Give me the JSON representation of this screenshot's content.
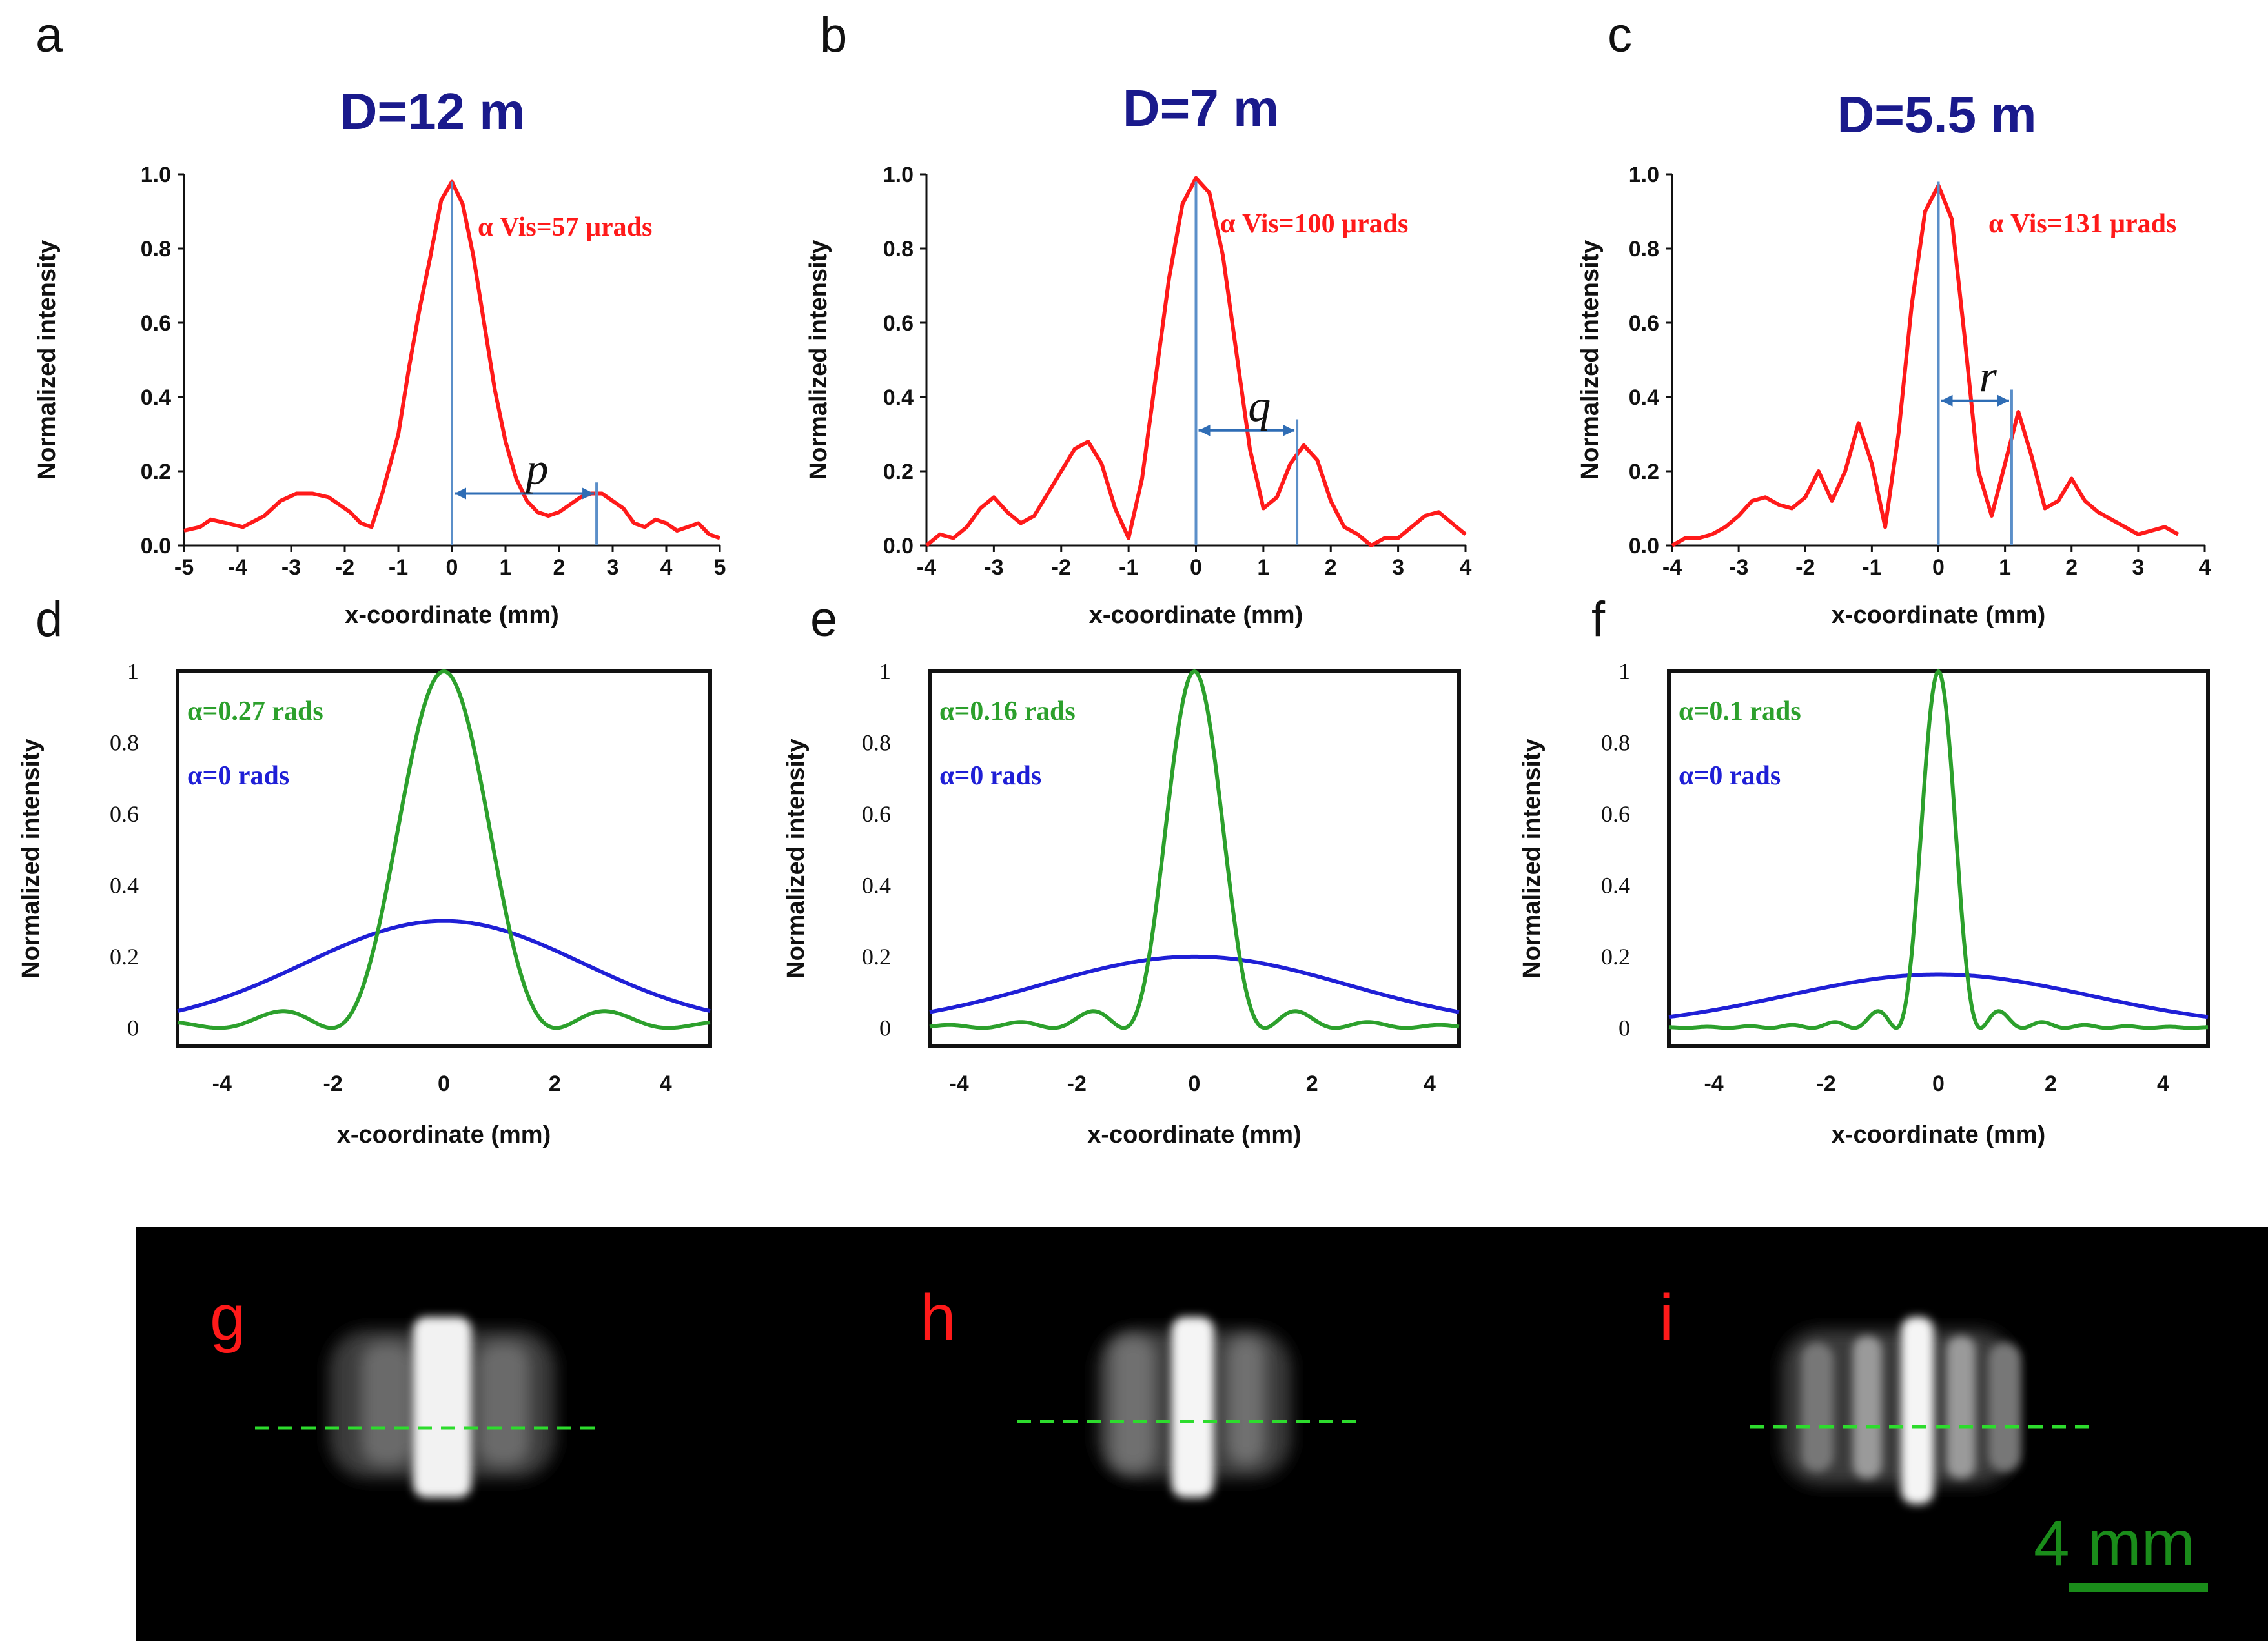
{
  "colors": {
    "measured": "#ff1a1a",
    "marker": "#5b8fc9",
    "sim_green": "#2ca02c",
    "sim_blue": "#1f1fd6",
    "title": "#1a1a8c",
    "scale": "#1a8c1a"
  },
  "chart_data": [
    {
      "panel": "a",
      "type": "line",
      "title": "D=12 m",
      "xlabel": "x-coordinate (mm)",
      "ylabel": "Normalized intensity",
      "xlim": [
        -5,
        5
      ],
      "ylim": [
        0,
        1
      ],
      "xticks": [
        "-5",
        "-4",
        "-3",
        "-2",
        "-1",
        "0",
        "1",
        "2",
        "3",
        "4",
        "5"
      ],
      "yticks": [
        "0.0",
        "0.2",
        "0.4",
        "0.6",
        "0.8",
        "1.0"
      ],
      "annotation": "α Vis=57 μrads",
      "marker_symbol": "p",
      "marker_x": [
        0,
        2.7
      ],
      "marker_y": 0.14,
      "series": [
        {
          "x": [
            -5,
            -4.7,
            -4.5,
            -4.2,
            -3.9,
            -3.5,
            -3.2,
            -2.9,
            -2.6,
            -2.3,
            -2.1,
            -1.9,
            -1.7,
            -1.5,
            -1.3,
            -1.0,
            -0.8,
            -0.6,
            -0.4,
            -0.2,
            0,
            0.2,
            0.4,
            0.6,
            0.8,
            1.0,
            1.2,
            1.4,
            1.6,
            1.8,
            2.0,
            2.2,
            2.4,
            2.6,
            2.8,
            3.0,
            3.2,
            3.4,
            3.6,
            3.8,
            4.0,
            4.2,
            4.4,
            4.6,
            4.8,
            5
          ],
          "y": [
            0.04,
            0.05,
            0.07,
            0.06,
            0.05,
            0.08,
            0.12,
            0.14,
            0.14,
            0.13,
            0.11,
            0.09,
            0.06,
            0.05,
            0.14,
            0.3,
            0.48,
            0.64,
            0.78,
            0.93,
            0.98,
            0.92,
            0.78,
            0.6,
            0.42,
            0.28,
            0.18,
            0.12,
            0.09,
            0.08,
            0.09,
            0.11,
            0.13,
            0.14,
            0.14,
            0.12,
            0.1,
            0.06,
            0.05,
            0.07,
            0.06,
            0.04,
            0.05,
            0.06,
            0.03,
            0.02
          ]
        }
      ]
    },
    {
      "panel": "b",
      "type": "line",
      "title": "D=7 m",
      "xlabel": "x-coordinate (mm)",
      "ylabel": "Normalized intensity",
      "xlim": [
        -4,
        4
      ],
      "ylim": [
        0,
        1
      ],
      "xticks": [
        "-4",
        "-3",
        "-2",
        "-1",
        "0",
        "1",
        "2",
        "3",
        "4"
      ],
      "yticks": [
        "0.0",
        "0.2",
        "0.4",
        "0.6",
        "0.8",
        "1.0"
      ],
      "annotation": "α Vis=100 μrads",
      "marker_symbol": "q",
      "marker_x": [
        0,
        1.5
      ],
      "marker_y": 0.31,
      "series": [
        {
          "x": [
            -4,
            -3.8,
            -3.6,
            -3.4,
            -3.2,
            -3.0,
            -2.8,
            -2.6,
            -2.4,
            -2.2,
            -2.0,
            -1.8,
            -1.6,
            -1.4,
            -1.2,
            -1.0,
            -0.8,
            -0.6,
            -0.4,
            -0.2,
            0,
            0.2,
            0.4,
            0.6,
            0.8,
            1.0,
            1.2,
            1.4,
            1.6,
            1.8,
            2.0,
            2.2,
            2.4,
            2.6,
            2.8,
            3.0,
            3.2,
            3.4,
            3.6,
            3.8,
            4.0
          ],
          "y": [
            0.0,
            0.03,
            0.02,
            0.05,
            0.1,
            0.13,
            0.09,
            0.06,
            0.08,
            0.14,
            0.2,
            0.26,
            0.28,
            0.22,
            0.1,
            0.02,
            0.18,
            0.45,
            0.72,
            0.92,
            0.99,
            0.95,
            0.78,
            0.52,
            0.26,
            0.1,
            0.13,
            0.22,
            0.27,
            0.23,
            0.12,
            0.05,
            0.03,
            0.0,
            0.02,
            0.02,
            0.05,
            0.08,
            0.09,
            0.06,
            0.03
          ]
        }
      ]
    },
    {
      "panel": "c",
      "type": "line",
      "title": "D=5.5 m",
      "xlabel": "x-coordinate (mm)",
      "ylabel": "Normalized intensity",
      "xlim": [
        -4,
        4
      ],
      "ylim": [
        0,
        1
      ],
      "xticks": [
        "-4",
        "-3",
        "-2",
        "-1",
        "0",
        "1",
        "2",
        "3",
        "4"
      ],
      "yticks": [
        "0.0",
        "0.2",
        "0.4",
        "0.6",
        "0.8",
        "1.0"
      ],
      "annotation": "α Vis=131 μrads",
      "marker_symbol": "r",
      "marker_x": [
        0,
        1.1
      ],
      "marker_y": 0.39,
      "series": [
        {
          "x": [
            -4,
            -3.8,
            -3.6,
            -3.4,
            -3.2,
            -3.0,
            -2.8,
            -2.6,
            -2.4,
            -2.2,
            -2.0,
            -1.8,
            -1.6,
            -1.4,
            -1.2,
            -1.0,
            -0.8,
            -0.6,
            -0.4,
            -0.2,
            0,
            0.2,
            0.4,
            0.6,
            0.8,
            1.0,
            1.2,
            1.4,
            1.6,
            1.8,
            2.0,
            2.2,
            2.4,
            2.6,
            2.8,
            3.0,
            3.2,
            3.4,
            3.6
          ],
          "y": [
            0.0,
            0.02,
            0.02,
            0.03,
            0.05,
            0.08,
            0.12,
            0.13,
            0.11,
            0.1,
            0.13,
            0.2,
            0.12,
            0.2,
            0.33,
            0.22,
            0.05,
            0.3,
            0.65,
            0.9,
            0.97,
            0.88,
            0.55,
            0.2,
            0.08,
            0.22,
            0.36,
            0.24,
            0.1,
            0.12,
            0.18,
            0.12,
            0.09,
            0.07,
            0.05,
            0.03,
            0.04,
            0.05,
            0.03
          ]
        }
      ]
    },
    {
      "panel": "d",
      "type": "line",
      "xlabel": "x-coordinate (mm)",
      "ylabel": "Normalized intensity",
      "xlim": [
        -4.8,
        4.8
      ],
      "ylim": [
        -0.05,
        1
      ],
      "xticks": [
        "-4",
        "-2",
        "0",
        "2",
        "4"
      ],
      "yticks": [
        "0",
        "0.2",
        "0.4",
        "0.6",
        "0.8",
        "1"
      ],
      "series": [
        {
          "name": "α=0.27 rads",
          "alpha": 0.27,
          "peak": 1.0
        },
        {
          "name": "α=0 rads",
          "gauss_peak": 0.3,
          "gauss_sigma": 2.5
        }
      ]
    },
    {
      "panel": "e",
      "type": "line",
      "xlabel": "x-coordinate (mm)",
      "ylabel": "Normalized intensity",
      "xlim": [
        -4.5,
        4.5
      ],
      "ylim": [
        -0.05,
        1
      ],
      "xticks": [
        "-4",
        "-2",
        "0",
        "2",
        "4"
      ],
      "yticks": [
        "0",
        "0.2",
        "0.4",
        "0.6",
        "0.8",
        "1"
      ],
      "series": [
        {
          "name": "α=0.16 rads",
          "alpha": 0.16,
          "peak": 1.0
        },
        {
          "name": "α=0 rads",
          "gauss_peak": 0.2,
          "gauss_sigma": 2.6
        }
      ]
    },
    {
      "panel": "f",
      "type": "line",
      "xlabel": "x-coordinate (mm)",
      "ylabel": "Normalized intensity",
      "xlim": [
        -4.8,
        4.8
      ],
      "ylim": [
        -0.05,
        1
      ],
      "xticks": [
        "-4",
        "-2",
        "0",
        "2",
        "4"
      ],
      "yticks": [
        "0",
        "0.2",
        "0.4",
        "0.6",
        "0.8",
        "1"
      ],
      "series": [
        {
          "name": "α=0.1  rads",
          "alpha": 0.1,
          "peak": 1.0
        },
        {
          "name": "α=0 rads",
          "gauss_peak": 0.15,
          "gauss_sigma": 2.7
        }
      ]
    }
  ],
  "images": [
    {
      "label": "g"
    },
    {
      "label": "h"
    },
    {
      "label": "i"
    }
  ],
  "scale_bar": {
    "label": "4 mm"
  }
}
